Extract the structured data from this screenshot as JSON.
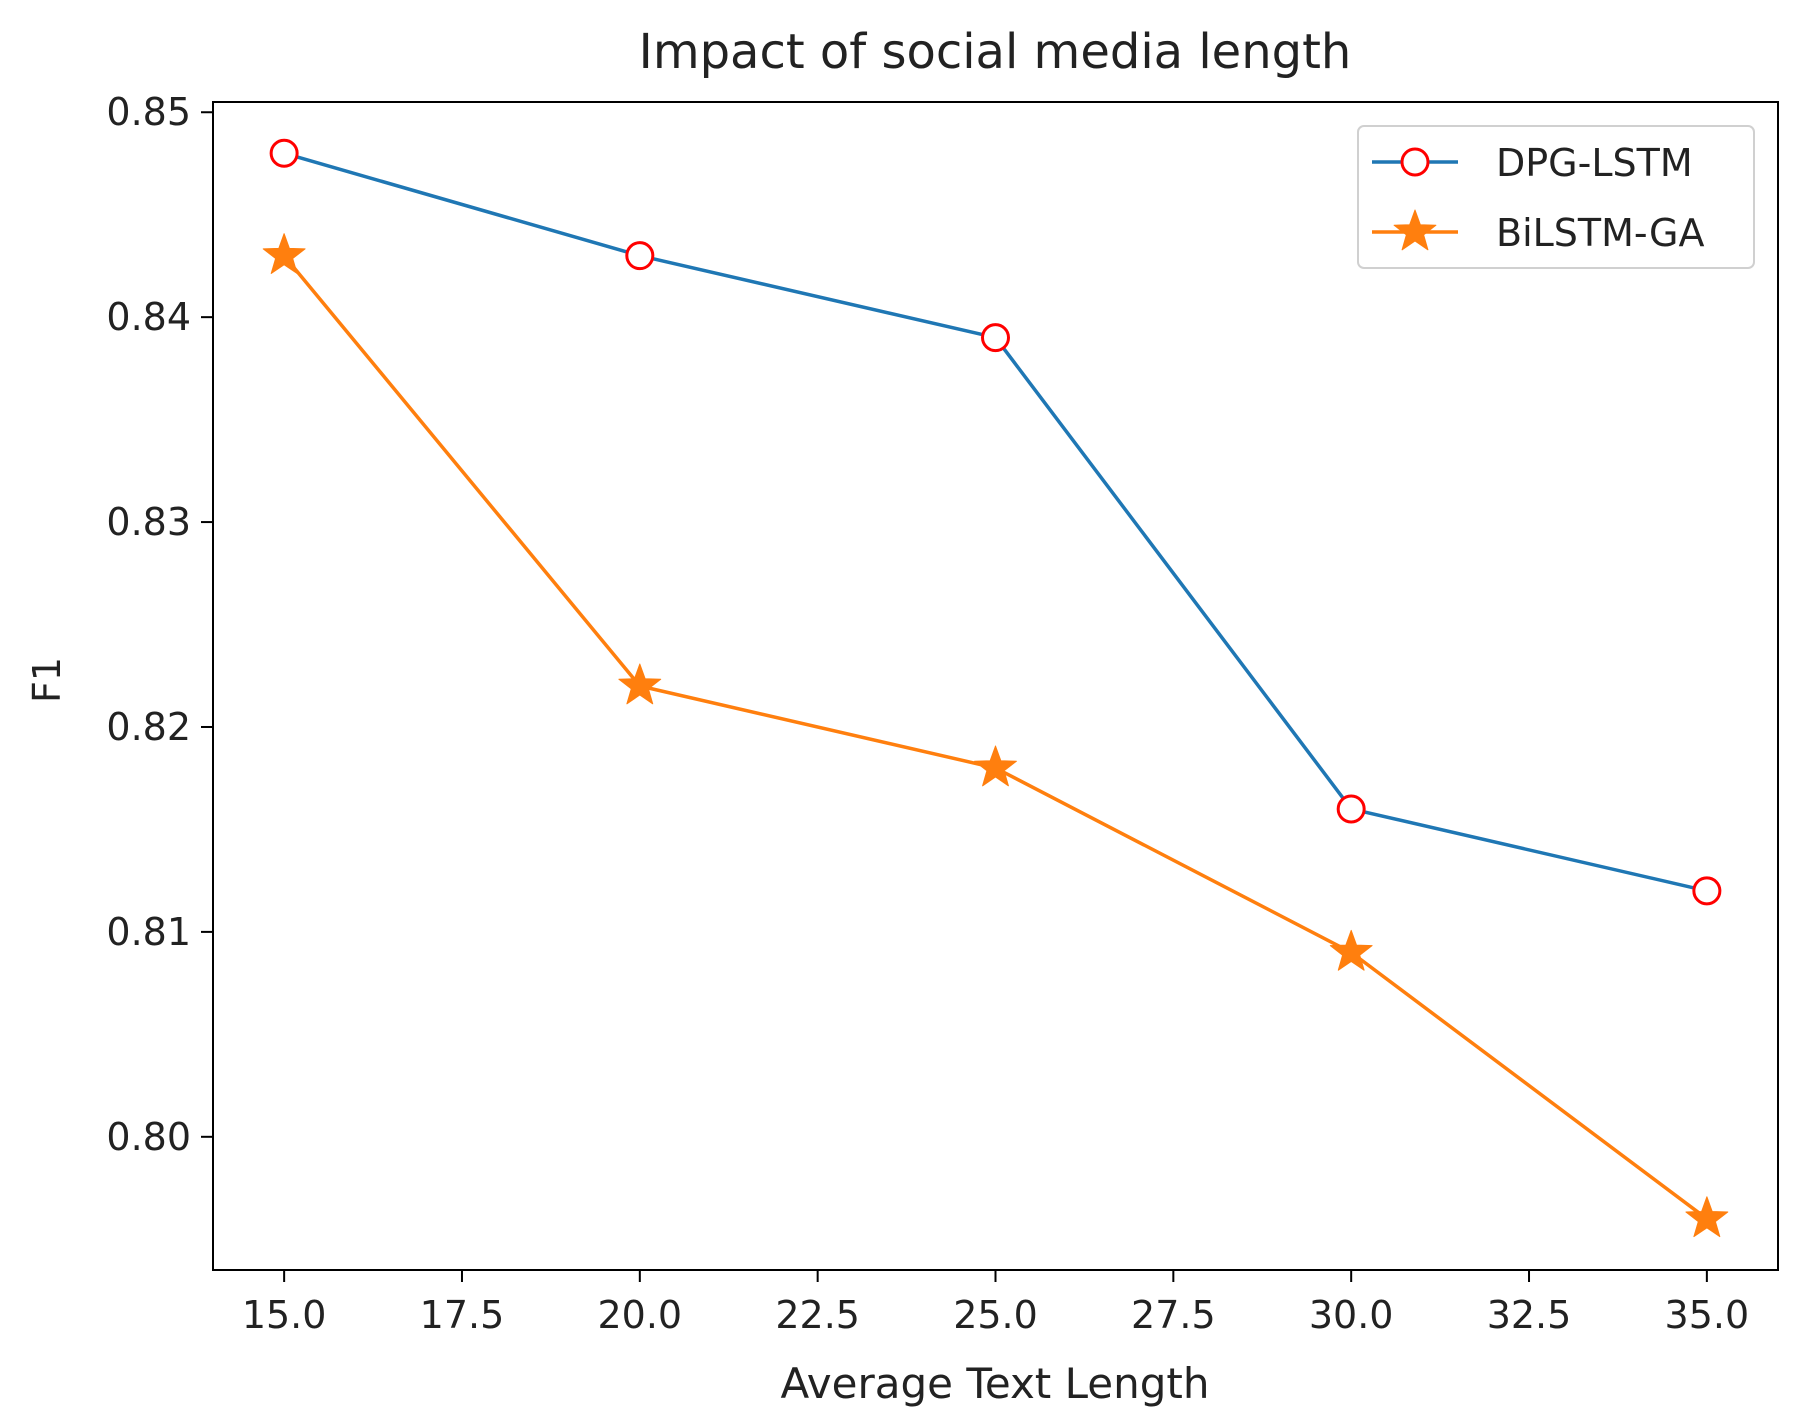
{
  "chart_data": {
    "type": "line",
    "title": "Impact of social media length",
    "xlabel": "Average Text Length",
    "ylabel": "F1",
    "xlim": [
      14.0,
      36.0
    ],
    "ylim": [
      0.7935,
      0.8505
    ],
    "xticks": [
      15.0,
      17.5,
      20.0,
      22.5,
      25.0,
      27.5,
      30.0,
      32.5,
      35.0
    ],
    "xtick_labels": [
      "15.0",
      "17.5",
      "20.0",
      "22.5",
      "25.0",
      "27.5",
      "30.0",
      "32.5",
      "35.0"
    ],
    "yticks": [
      0.8,
      0.81,
      0.82,
      0.83,
      0.84,
      0.85
    ],
    "ytick_labels": [
      "0.80",
      "0.81",
      "0.82",
      "0.83",
      "0.84",
      "0.85"
    ],
    "x": [
      15,
      20,
      25,
      30,
      35
    ],
    "series": [
      {
        "name": "DPG-LSTM",
        "values": [
          0.848,
          0.843,
          0.839,
          0.816,
          0.812
        ],
        "color": "#1f77b4",
        "marker": "circle-open",
        "marker_color": "#ff0000"
      },
      {
        "name": "BiLSTM-GA",
        "values": [
          0.843,
          0.822,
          0.818,
          0.809,
          0.796
        ],
        "color": "#ff7f0e",
        "marker": "star",
        "marker_color": "#ff7f0e"
      }
    ],
    "legend_position": "top-right",
    "grid": false
  }
}
